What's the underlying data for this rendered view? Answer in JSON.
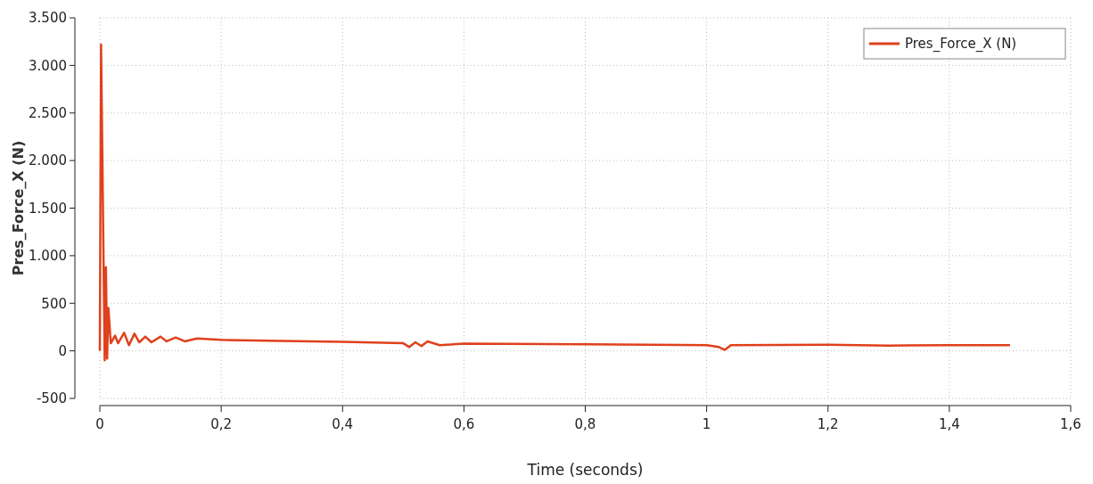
{
  "chart_data": {
    "type": "line",
    "xlabel": "Time (seconds)",
    "ylabel": "Pres_Force_X (N)",
    "xlim": [
      0,
      1.6
    ],
    "xticks": [
      0,
      {
        "value": 0.2,
        "label": "0,2"
      },
      {
        "value": 0.4,
        "label": "0,4"
      },
      {
        "value": 0.6,
        "label": "0,6"
      },
      {
        "value": 0.8,
        "label": "0,8"
      },
      1,
      {
        "value": 1.2,
        "label": "1,2"
      },
      {
        "value": 1.4,
        "label": "1,4"
      },
      {
        "value": 1.6,
        "label": "1,6"
      }
    ],
    "ylim": [
      -500,
      3500
    ],
    "yticks": [
      -500,
      0,
      500,
      {
        "value": 1000,
        "label": "1.000"
      },
      {
        "value": 1500,
        "label": "1.500"
      },
      {
        "value": 2000,
        "label": "2.000"
      },
      {
        "value": 2500,
        "label": "2.500"
      },
      {
        "value": 3000,
        "label": "3.000"
      },
      {
        "value": 3500,
        "label": "3.500"
      }
    ],
    "grid": true,
    "legend": "top right",
    "marker": "none",
    "line_style": "solid",
    "series": [
      {
        "name": "Pres_Force_X (N)",
        "color": "#e0401c",
        "x": [
          0,
          0.002,
          0.008,
          0.01,
          0.012,
          0.014,
          0.018,
          0.025,
          0.03,
          0.04,
          0.048,
          0.057,
          0.065,
          0.075,
          0.085,
          0.1,
          0.11,
          0.125,
          0.14,
          0.16,
          0.2,
          0.3,
          0.4,
          0.5,
          0.51,
          0.52,
          0.53,
          0.54,
          0.56,
          0.6,
          0.8,
          1.0,
          1.02,
          1.03,
          1.04,
          1.2,
          1.3,
          1.4,
          1.5
        ],
        "values": [
          0,
          3220,
          -100,
          880,
          -80,
          450,
          80,
          160,
          80,
          190,
          60,
          180,
          90,
          150,
          90,
          150,
          100,
          140,
          100,
          130,
          115,
          105,
          95,
          80,
          40,
          90,
          50,
          100,
          60,
          75,
          70,
          60,
          40,
          10,
          60,
          65,
          55,
          60,
          60
        ]
      }
    ]
  }
}
